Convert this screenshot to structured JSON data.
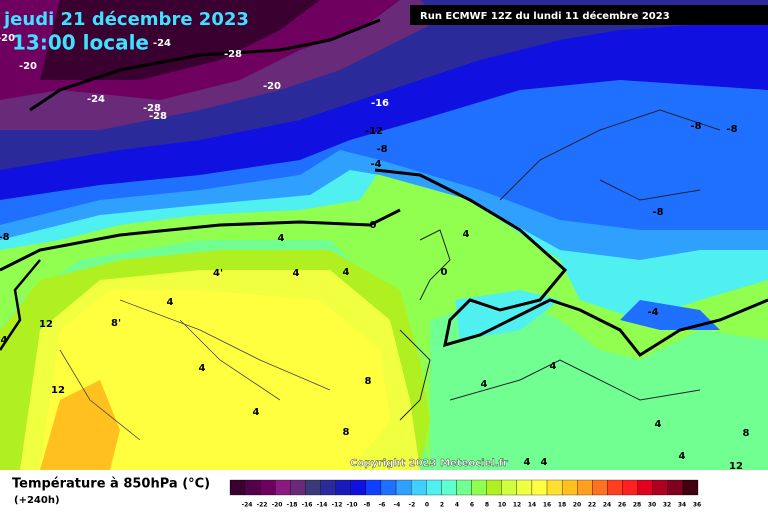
{
  "header": {
    "date": "jeudi 21 décembre 2023",
    "time": "13:00 locale",
    "run": "Run ECMWF 12Z du lundi 11 décembre 2023"
  },
  "copyright": "Copyright 2023 Meteociel.fr",
  "legend": {
    "title": "Température à 850hPa (°C)",
    "subtitle": "(+240h)",
    "ticks": [
      -24,
      -22,
      -20,
      -18,
      -16,
      -14,
      -12,
      -10,
      -8,
      -6,
      -4,
      -2,
      0,
      2,
      4,
      6,
      8,
      10,
      12,
      14,
      16,
      18,
      20,
      22,
      24,
      26,
      28,
      30,
      32,
      34,
      36
    ],
    "colors": [
      "#3a0030",
      "#55004a",
      "#700060",
      "#8a1a80",
      "#6a2a7a",
      "#3a3a7a",
      "#2a2a9a",
      "#1a1aba",
      "#1010e0",
      "#1040ff",
      "#2070ff",
      "#30a0ff",
      "#40d0ff",
      "#50f0f0",
      "#60ffd0",
      "#70ff90",
      "#90ff50",
      "#b0f020",
      "#d0ff40",
      "#f0ff40",
      "#ffff40",
      "#ffe030",
      "#ffc020",
      "#ffa020",
      "#ff7020",
      "#ff4020",
      "#ff2020",
      "#e00020",
      "#b00020",
      "#800020",
      "#400010"
    ]
  },
  "map": {
    "labels": [
      "-20",
      "-24",
      "-28",
      "-20",
      "-20",
      "-24",
      "-28",
      "-28",
      "-16",
      "-12",
      "-8",
      "-4",
      "-8",
      "-8",
      "-8",
      "-8",
      "0",
      "4",
      "4",
      "4'",
      "4",
      "4",
      "0",
      "4",
      "8'",
      "12",
      "-4",
      "4",
      "4",
      "8",
      "4",
      "12",
      "4",
      "8",
      "4",
      "8",
      "4",
      "4",
      "4",
      "12",
      "4"
    ]
  }
}
